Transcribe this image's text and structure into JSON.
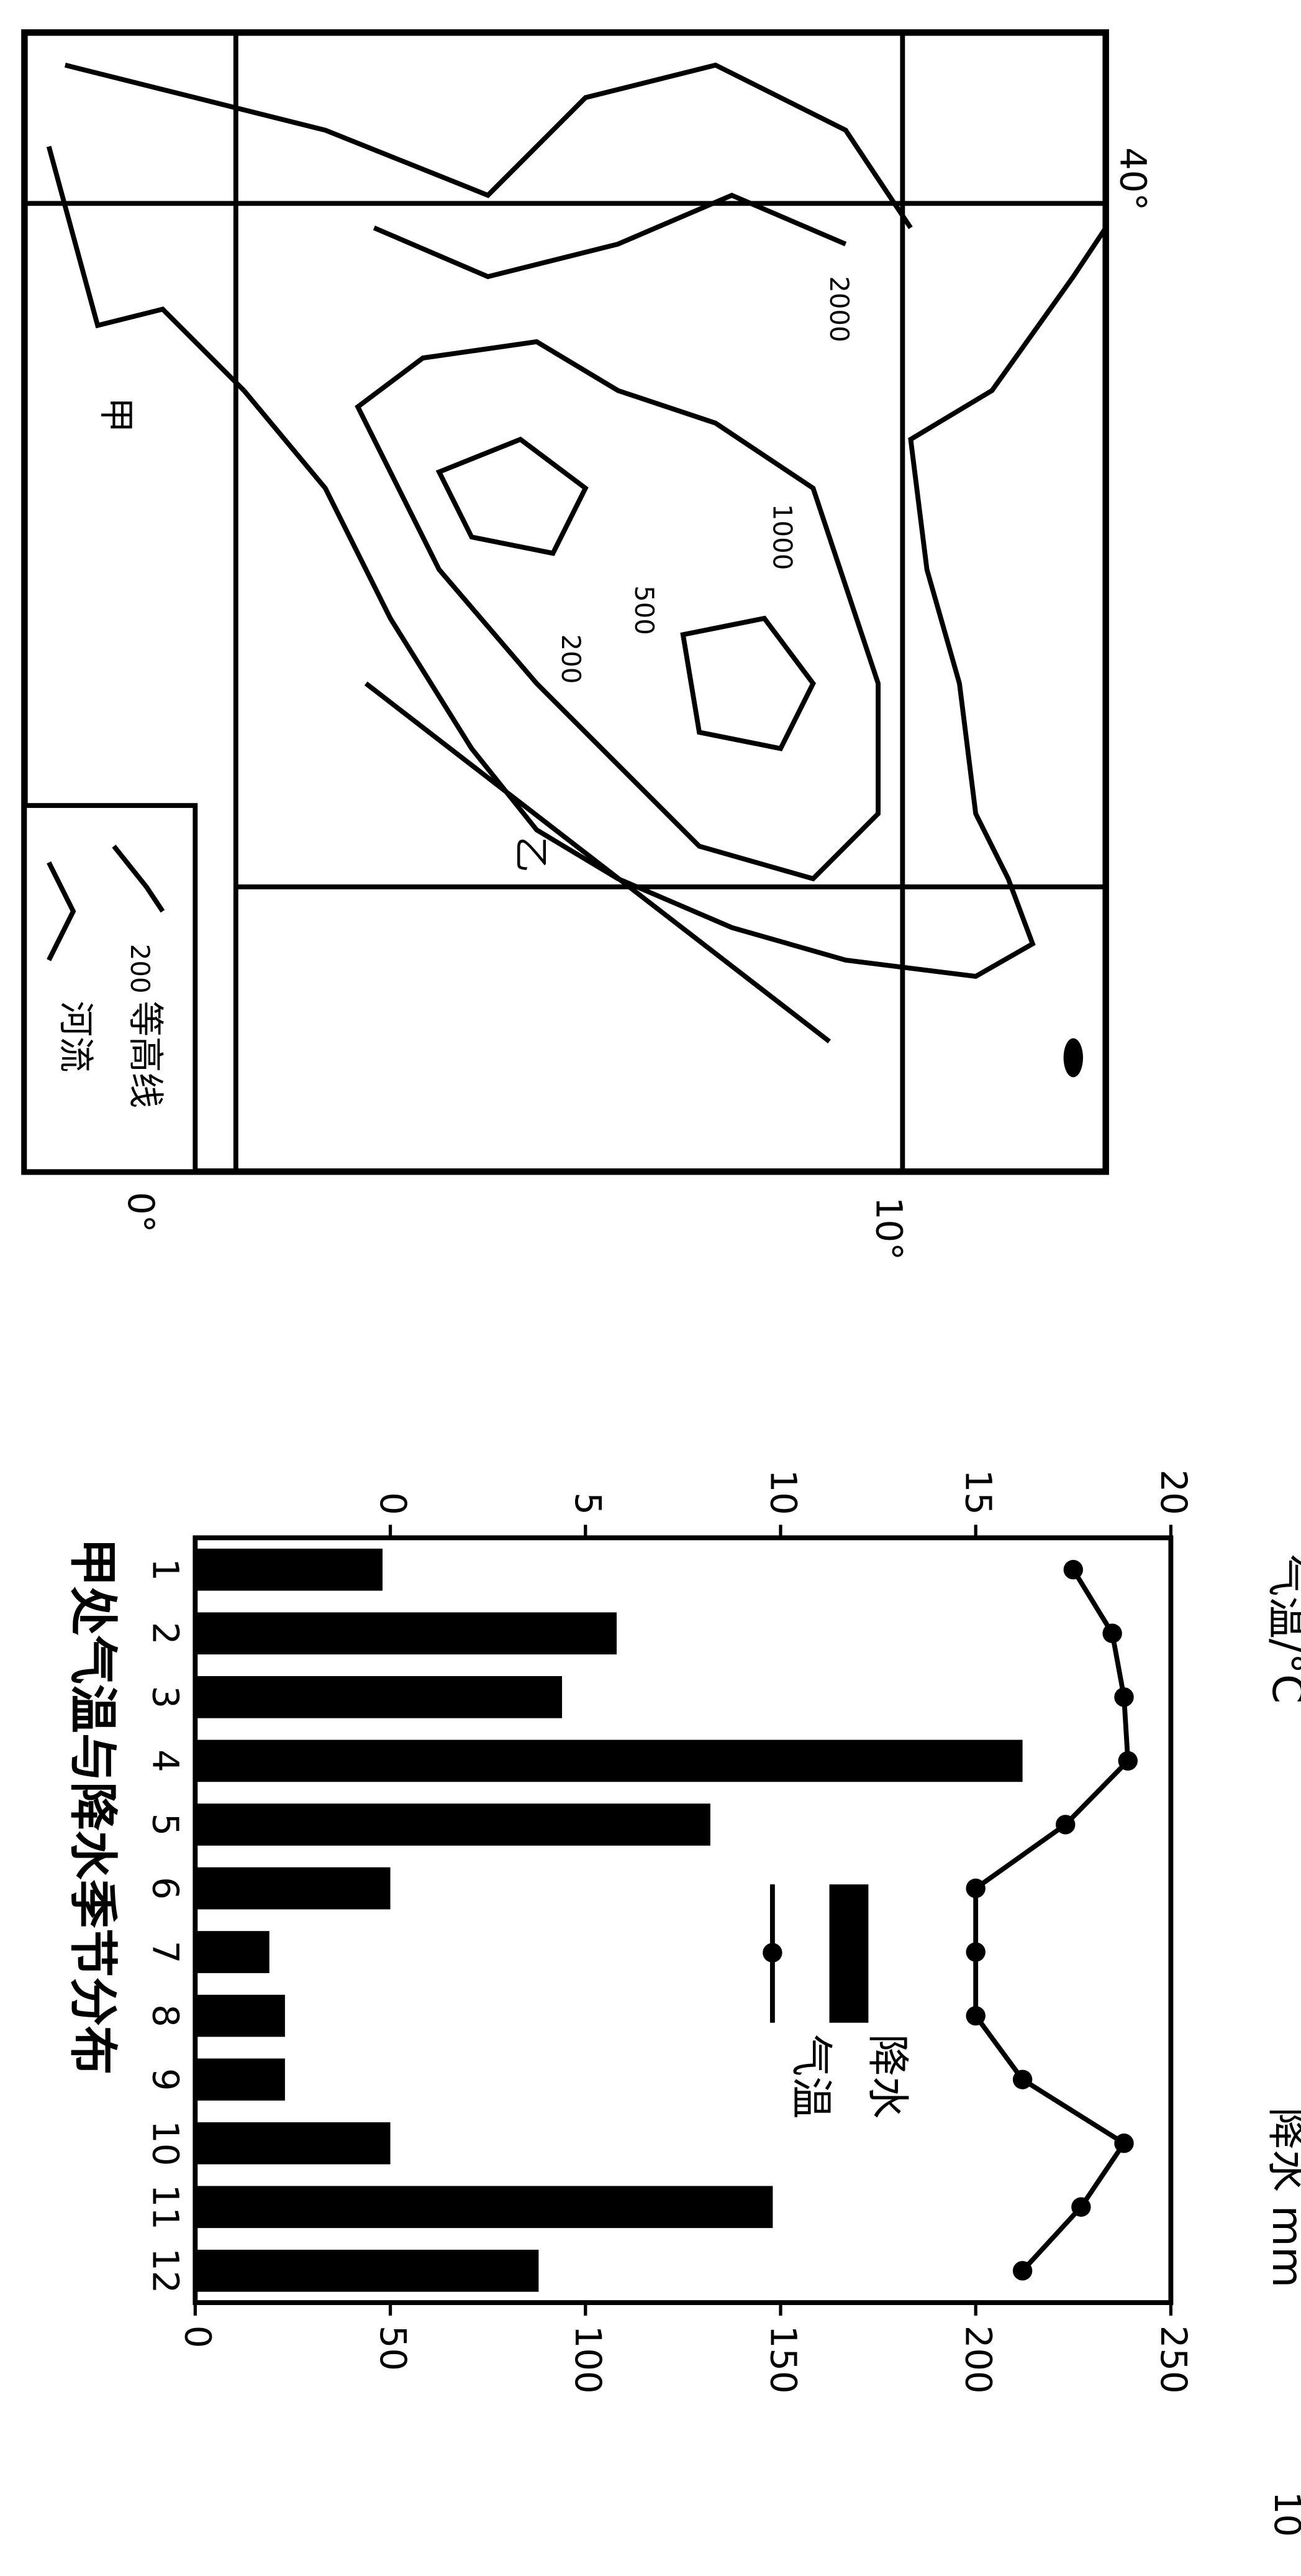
{
  "map": {
    "labels": {
      "jia": "甲",
      "yi": "乙",
      "lat40": "40°",
      "lat10": "10°",
      "lon0": "0°"
    },
    "contours": [
      "2000",
      "1000",
      "500",
      "200"
    ],
    "legend": {
      "sample": "200",
      "contour": "等高线",
      "river": "河流"
    }
  },
  "page_number": "10",
  "chart_data": {
    "type": "bar_line",
    "title": "甲处气温与降水季节分布",
    "ylabel": "气温/°C",
    "y2label": "降水 mm",
    "categories": [
      "1",
      "2",
      "3",
      "4",
      "5",
      "6",
      "7",
      "8",
      "9",
      "10",
      "11",
      "12"
    ],
    "series": [
      {
        "name": "降水",
        "type": "bar",
        "axis": "y2",
        "color": "#000000",
        "values": [
          48,
          108,
          94,
          212,
          132,
          50,
          19,
          23,
          23,
          50,
          148,
          88
        ]
      },
      {
        "name": "气温",
        "type": "line",
        "color": "#000000",
        "values": [
          17.5,
          18.5,
          18.8,
          18.9,
          17.3,
          15,
          15,
          15,
          16.2,
          18.8,
          17.7,
          16.2
        ]
      }
    ],
    "ylim": [
      -5,
      20
    ],
    "yticks": [
      0,
      5,
      10,
      15,
      20
    ],
    "y2lim": [
      0,
      250
    ],
    "y2ticks": [
      0,
      50,
      100,
      150,
      200,
      250
    ]
  }
}
